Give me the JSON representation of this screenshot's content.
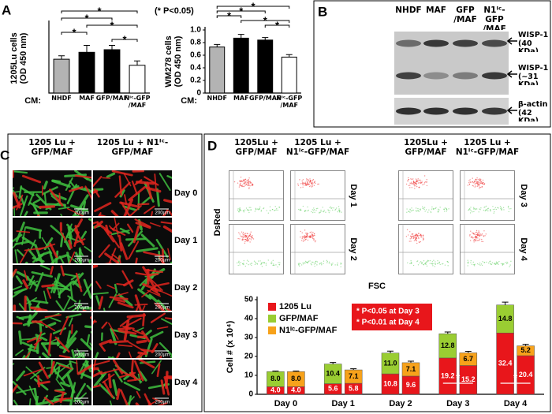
{
  "figure": {
    "panel_labels": [
      "A",
      "B",
      "C",
      "D"
    ],
    "significance_note": "(* P<0.05)"
  },
  "blot": {
    "lanes": [
      "NHDF",
      "MAF",
      "GFP /MAF",
      "N1ᴵᶜ-GFP /MAF"
    ],
    "bands": [
      "WISP-1 (40 KDa)",
      "WISP-1 (~31 KDa)",
      "β-actin (42 KDa)"
    ]
  },
  "micrographs": {
    "columns": [
      "1205 Lu + GFP/MAF",
      "1205 Lu + N1ᴵᶜ-GFP/MAF"
    ],
    "rows": [
      "Day 0",
      "Day 1",
      "Day 2",
      "Day 3",
      "Day 4"
    ],
    "scale_bar": "200µm"
  },
  "flow": {
    "columns": [
      "1205Lu + GFP/MAF",
      "1205 Lu + N1ᴵᶜ-GFP/MAF"
    ],
    "days": [
      "Day 1",
      "Day 2",
      "Day 3",
      "Day 4"
    ],
    "y_label": "DsRed",
    "x_label": "FSC"
  },
  "chart_data": [
    {
      "type": "bar",
      "y_label": [
        "1205Lu cells",
        "(OD 450 nm)"
      ],
      "x_prefix": "CM:",
      "categories": [
        "NHDF",
        "MAF",
        "GFP/MAF",
        "Nᴵᶜ-GFP /MAF"
      ],
      "values": [
        0.39,
        0.47,
        0.5,
        0.32
      ],
      "errors": [
        0.04,
        0.08,
        0.05,
        0.05
      ],
      "colors": [
        "#b3b3b3",
        "#000000",
        "#000000",
        "#ffffff"
      ],
      "ylim": [
        0,
        0.8
      ],
      "brackets": [
        {
          "from": "NHDF",
          "to": "Nᴵᶜ-GFP /MAF",
          "label": "*"
        },
        {
          "from": "NHDF",
          "to": "GFP/MAF",
          "label": "*"
        },
        {
          "from": "MAF",
          "to": "Nᴵᶜ-GFP /MAF",
          "label": "*"
        },
        {
          "from": "NHDF",
          "to": "MAF",
          "label": "*"
        },
        {
          "from": "GFP/MAF",
          "to": "Nᴵᶜ-GFP /MAF",
          "label": "*"
        }
      ]
    },
    {
      "type": "bar",
      "y_label": [
        "WM278 cells",
        "(OD 450 nm)"
      ],
      "x_prefix": "CM:",
      "categories": [
        "NHDF",
        "MAF",
        "GFP/MAF",
        "Nᴵᶜ-GFP /MAF"
      ],
      "values": [
        0.73,
        0.87,
        0.84,
        0.57
      ],
      "errors": [
        0.04,
        0.06,
        0.04,
        0.04
      ],
      "colors": [
        "#b3b3b3",
        "#000000",
        "#000000",
        "#ffffff"
      ],
      "ylim": [
        0,
        1
      ],
      "yticks": [
        0,
        0.2,
        0.4,
        0.6,
        0.8,
        {
          "value": 1,
          "label": "1.0"
        }
      ],
      "brackets": [
        {
          "from": "NHDF",
          "to": "Nᴵᶜ-GFP /MAF",
          "label": "*"
        },
        {
          "from": "NHDF",
          "to": "GFP/MAF",
          "label": "*"
        },
        {
          "from": "NHDF",
          "to": "MAF",
          "label": "*"
        },
        {
          "from": "MAF",
          "to": "Nᴵᶜ-GFP /MAF",
          "label": "*"
        },
        {
          "from": "GFP/MAF",
          "to": "Nᴵᶜ-GFP /MAF",
          "label": "*"
        }
      ]
    },
    {
      "type": "stacked_bar",
      "y_label": "Cell # (x 10⁴)",
      "categories": [
        "Day 0",
        "Day 1",
        "Day 2",
        "Day 3",
        "Day 4"
      ],
      "series": [
        {
          "name": "1205 Lu",
          "stack": "GFP/MAF",
          "color": "#e8161b",
          "values": [
            4.0,
            5.6,
            10.8,
            19.2,
            32.4
          ],
          "value_labels": [
            "4.0",
            "5.6",
            "10.8",
            "19.2",
            "32.4"
          ]
        },
        {
          "name": "GFP/MAF",
          "stack": "GFP/MAF",
          "color": "#9acd32",
          "values": [
            8.0,
            10.4,
            11.0,
            12.8,
            14.8
          ],
          "value_labels": [
            "8.0",
            "10.4",
            "11.0",
            "12.8",
            "14.8"
          ],
          "errors": [
            0.3,
            0.8,
            1.0,
            0.9,
            1.5
          ]
        },
        {
          "name": "1205 Lu",
          "stack": "N1ᴵᶜ-GFP/MAF",
          "color": "#e8161b",
          "values": [
            4.0,
            5.8,
            9.6,
            15.2,
            20.4
          ],
          "value_labels": [
            "4.0",
            "5.8",
            "9.6",
            "15.2",
            "20.4"
          ]
        },
        {
          "name": "N1ᴵᶜ-GFP/MAF",
          "stack": "N1ᴵᶜ-GFP/MAF",
          "color": "#f7a21b",
          "values": [
            8.0,
            7.1,
            7.1,
            6.7,
            5.2
          ],
          "value_labels": [
            "8.0",
            "7.1",
            "7.1",
            "6.7",
            "5.2"
          ],
          "errors": [
            0.3,
            0.6,
            0.8,
            0.8,
            0.8
          ]
        }
      ],
      "ylim": [
        0,
        50
      ],
      "yticks": [
        0,
        10,
        20,
        30,
        40,
        50
      ],
      "annotations": [
        "* P<0.05 at Day 3",
        "* P<0.01 at Day 4"
      ],
      "markers": [
        {
          "category": "Day 3",
          "label": "*"
        },
        {
          "category": "Day 4",
          "label": "*"
        }
      ]
    }
  ]
}
